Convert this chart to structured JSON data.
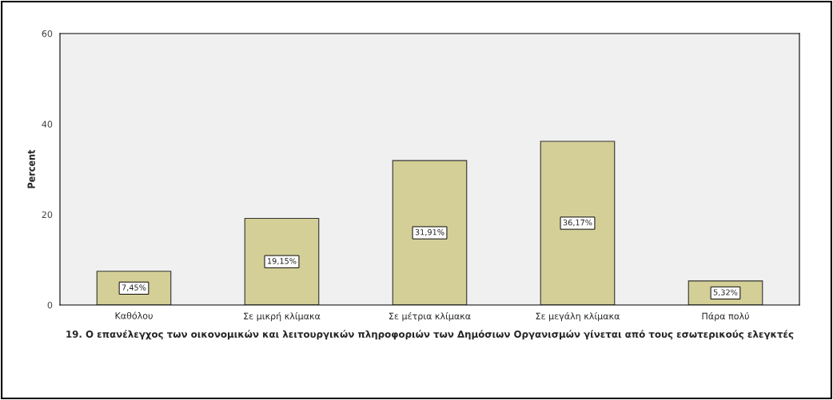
{
  "chart_data": {
    "type": "bar",
    "xlabel": "19. Ο επανέλεγχος των οικονομικών και λειτουργικών πληροφοριών των Δημόσιων Οργανισμών γίνεται από τους εσωτερικούς ελεγκτές",
    "ylabel": "Percent",
    "categories": [
      "Καθόλου",
      "Σε μικρή κλίμακα",
      "Σε μέτρια κλίμακα",
      "Σε μεγάλη κλίμακα",
      "Πάρα πολύ"
    ],
    "values": [
      7.45,
      19.15,
      31.91,
      36.17,
      5.32
    ],
    "value_labels": [
      "7,45%",
      "19,15%",
      "31,91%",
      "36,17%",
      "5,32%"
    ],
    "color": "#d4cf96",
    "ylim": [
      0,
      60
    ],
    "yticks": [
      0,
      20,
      40,
      60
    ],
    "grid": false,
    "legend": false
  }
}
